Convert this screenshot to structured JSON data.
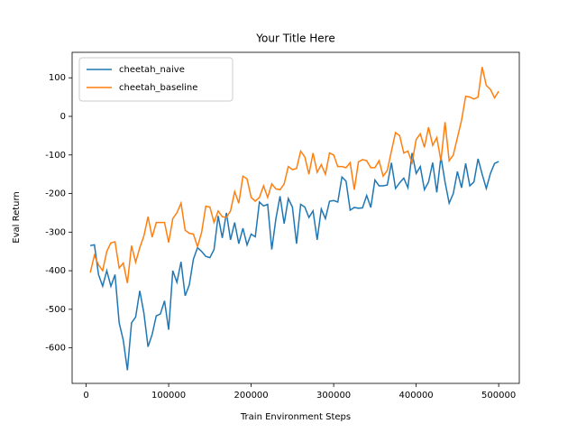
{
  "chart_data": {
    "type": "line",
    "title": "Your Title Here",
    "x_label": "Train Environment Steps",
    "y_label": "Eval Return",
    "x": [
      5000,
      10000,
      15000,
      20000,
      25000,
      30000,
      35000,
      40000,
      45000,
      50000,
      55000,
      60000,
      65000,
      70000,
      75000,
      80000,
      85000,
      90000,
      95000,
      100000,
      105000,
      110000,
      115000,
      120000,
      125000,
      130000,
      135000,
      140000,
      145000,
      150000,
      155000,
      160000,
      165000,
      170000,
      175000,
      180000,
      185000,
      190000,
      195000,
      200000,
      205000,
      210000,
      215000,
      220000,
      225000,
      230000,
      235000,
      240000,
      245000,
      250000,
      255000,
      260000,
      265000,
      270000,
      275000,
      280000,
      285000,
      290000,
      295000,
      300000,
      305000,
      310000,
      315000,
      320000,
      325000,
      330000,
      335000,
      340000,
      345000,
      350000,
      355000,
      360000,
      365000,
      370000,
      375000,
      380000,
      385000,
      390000,
      395000,
      400000,
      405000,
      410000,
      415000,
      420000,
      425000,
      430000,
      435000,
      440000,
      445000,
      450000,
      455000,
      460000,
      465000,
      470000,
      475000,
      480000,
      485000,
      490000,
      495000,
      500000
    ],
    "series": [
      {
        "name": "cheetah_naive",
        "color": "#1f77b4",
        "values": [
          -335,
          -333,
          -410,
          -440,
          -400,
          -440,
          -410,
          -535,
          -580,
          -658,
          -535,
          -520,
          -452,
          -510,
          -597,
          -565,
          -517,
          -512,
          -478,
          -553,
          -400,
          -430,
          -377,
          -465,
          -437,
          -370,
          -340,
          -350,
          -363,
          -366,
          -345,
          -258,
          -315,
          -250,
          -320,
          -275,
          -330,
          -290,
          -333,
          -305,
          -312,
          -222,
          -232,
          -228,
          -345,
          -265,
          -207,
          -278,
          -213,
          -235,
          -330,
          -228,
          -235,
          -262,
          -245,
          -320,
          -240,
          -265,
          -220,
          -218,
          -222,
          -157,
          -168,
          -243,
          -236,
          -238,
          -237,
          -205,
          -236,
          -165,
          -180,
          -180,
          -178,
          -120,
          -187,
          -172,
          -160,
          -185,
          -95,
          -148,
          -130,
          -190,
          -170,
          -120,
          -197,
          -105,
          -170,
          -225,
          -200,
          -143,
          -185,
          -122,
          -180,
          -170,
          -110,
          -150,
          -187,
          -148,
          -122,
          -117
        ]
      },
      {
        "name": "cheetah_baseline",
        "color": "#ff7f0e",
        "values": [
          -405,
          -360,
          -385,
          -400,
          -350,
          -328,
          -325,
          -393,
          -380,
          -432,
          -335,
          -378,
          -340,
          -310,
          -260,
          -313,
          -275,
          -275,
          -275,
          -327,
          -265,
          -250,
          -225,
          -295,
          -303,
          -305,
          -338,
          -300,
          -233,
          -235,
          -275,
          -245,
          -260,
          -262,
          -245,
          -195,
          -225,
          -155,
          -162,
          -210,
          -220,
          -210,
          -180,
          -210,
          -175,
          -188,
          -190,
          -175,
          -130,
          -138,
          -135,
          -90,
          -105,
          -150,
          -95,
          -145,
          -125,
          -150,
          -95,
          -100,
          -130,
          -130,
          -133,
          -120,
          -190,
          -118,
          -112,
          -115,
          -133,
          -133,
          -115,
          -155,
          -140,
          -90,
          -42,
          -50,
          -95,
          -90,
          -120,
          -60,
          -45,
          -80,
          -28,
          -75,
          -55,
          -115,
          -15,
          -115,
          -100,
          -55,
          -10,
          52,
          50,
          45,
          50,
          128,
          80,
          70,
          48,
          65
        ]
      }
    ],
    "xlim": [
      -17000,
      525000
    ],
    "ylim": [
      -692,
      166
    ],
    "xticks": [
      0,
      100000,
      200000,
      300000,
      400000,
      500000
    ],
    "yticks": [
      -600,
      -500,
      -400,
      -300,
      -200,
      -100,
      0,
      100
    ],
    "legend": "upper left"
  }
}
